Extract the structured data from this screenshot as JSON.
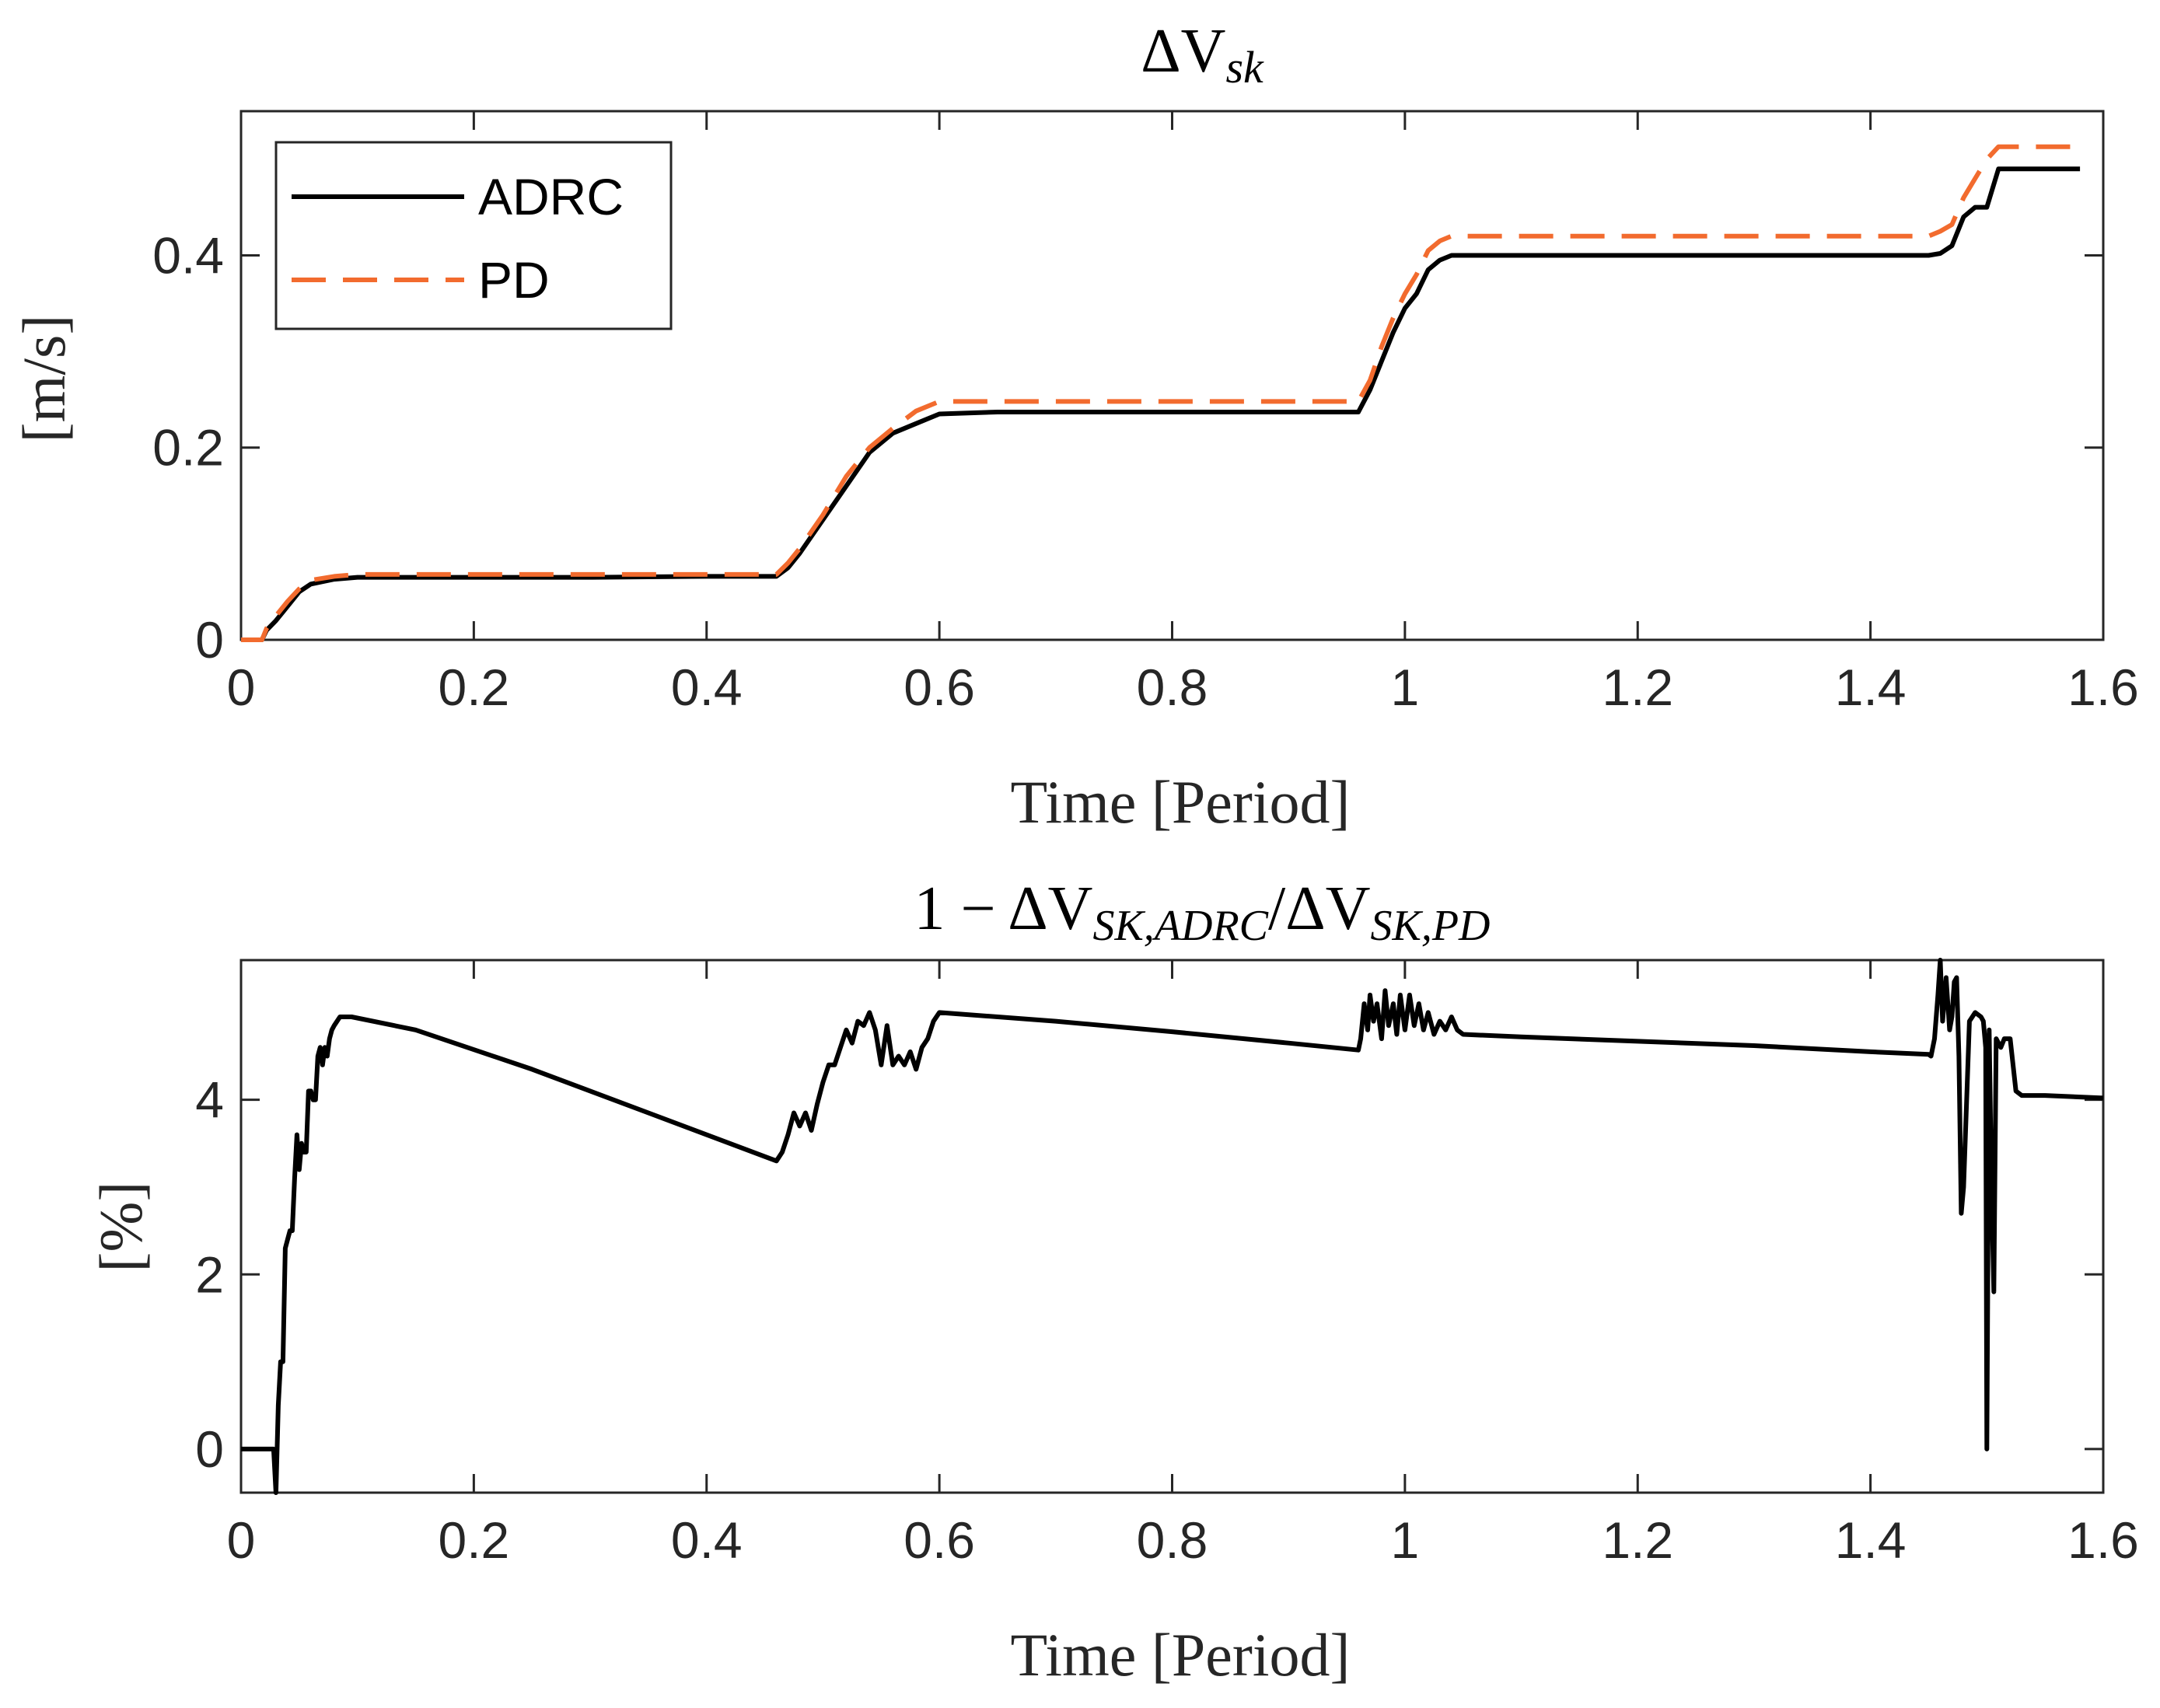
{
  "chart_data": [
    {
      "type": "line",
      "title": "ΔV_sk",
      "title_parts": {
        "main": "ΔV",
        "sub": "sk"
      },
      "xlabel": "Time [Period]",
      "ylabel": "[m/s]",
      "xlim": [
        0,
        1.6
      ],
      "ylim": [
        0,
        0.55
      ],
      "xticks": [
        0,
        0.2,
        0.4,
        0.6,
        0.8,
        1,
        1.2,
        1.4,
        1.6
      ],
      "xtick_labels": [
        "0",
        "0.2",
        "0.4",
        "0.6",
        "0.8",
        "1",
        "1.2",
        "1.4",
        "1.6"
      ],
      "yticks": [
        0,
        0.2,
        0.4
      ],
      "ytick_labels": [
        "0",
        "0.2",
        "0.4"
      ],
      "legend_position": "top-left",
      "series": [
        {
          "name": "ADRC",
          "color": "#000000",
          "style": "solid",
          "x": [
            0,
            0.018,
            0.022,
            0.03,
            0.04,
            0.05,
            0.06,
            0.08,
            0.1,
            0.2,
            0.3,
            0.4,
            0.46,
            0.47,
            0.48,
            0.5,
            0.52,
            0.54,
            0.56,
            0.58,
            0.6,
            0.65,
            0.8,
            0.96,
            0.97,
            0.98,
            0.99,
            1.0,
            1.01,
            1.02,
            1.03,
            1.04,
            1.05,
            1.1,
            1.3,
            1.45,
            1.46,
            1.47,
            1.48,
            1.49,
            1.5,
            1.51,
            1.52,
            1.58
          ],
          "y": [
            0,
            0,
            0.01,
            0.02,
            0.035,
            0.05,
            0.058,
            0.063,
            0.065,
            0.065,
            0.065,
            0.066,
            0.066,
            0.075,
            0.09,
            0.125,
            0.16,
            0.195,
            0.215,
            0.225,
            0.235,
            0.237,
            0.237,
            0.237,
            0.26,
            0.29,
            0.32,
            0.345,
            0.36,
            0.385,
            0.395,
            0.4,
            0.4,
            0.4,
            0.4,
            0.4,
            0.402,
            0.41,
            0.44,
            0.45,
            0.45,
            0.49,
            0.49,
            0.49
          ]
        },
        {
          "name": "PD",
          "color": "#F26B2E",
          "style": "dashed",
          "x": [
            0,
            0.018,
            0.022,
            0.03,
            0.04,
            0.05,
            0.06,
            0.08,
            0.1,
            0.2,
            0.3,
            0.4,
            0.46,
            0.47,
            0.48,
            0.5,
            0.52,
            0.54,
            0.56,
            0.58,
            0.6,
            0.65,
            0.8,
            0.96,
            0.97,
            0.98,
            0.99,
            1.0,
            1.01,
            1.02,
            1.03,
            1.04,
            1.05,
            1.1,
            1.3,
            1.45,
            1.46,
            1.47,
            1.48,
            1.49,
            1.5,
            1.51,
            1.52,
            1.58
          ],
          "y": [
            0,
            0,
            0.012,
            0.025,
            0.04,
            0.053,
            0.062,
            0.066,
            0.068,
            0.068,
            0.068,
            0.068,
            0.068,
            0.08,
            0.095,
            0.13,
            0.17,
            0.2,
            0.22,
            0.238,
            0.248,
            0.248,
            0.248,
            0.248,
            0.27,
            0.305,
            0.335,
            0.36,
            0.38,
            0.405,
            0.415,
            0.42,
            0.42,
            0.42,
            0.42,
            0.42,
            0.425,
            0.432,
            0.46,
            0.48,
            0.5,
            0.513,
            0.513,
            0.513
          ]
        }
      ]
    },
    {
      "type": "line",
      "title": "1 − ΔV_SK,ADRC / ΔV_SK,PD",
      "title_parts": {
        "prefix": "1 − ΔV",
        "sub1": "SK,ADRC",
        "mid": "/ΔV",
        "sub2": "SK,PD"
      },
      "xlabel": "Time [Period]",
      "ylabel": "[%]",
      "xlim": [
        0,
        1.6
      ],
      "ylim": [
        -0.5,
        5.6
      ],
      "xticks": [
        0,
        0.2,
        0.4,
        0.6,
        0.8,
        1,
        1.2,
        1.4,
        1.6
      ],
      "xtick_labels": [
        "0",
        "0.2",
        "0.4",
        "0.6",
        "0.8",
        "1",
        "1.2",
        "1.4",
        "1.6"
      ],
      "yticks": [
        0,
        2,
        4
      ],
      "ytick_labels": [
        "0",
        "2",
        "4"
      ],
      "series": [
        {
          "name": "1 − ΔV_SK,ADRC/ΔV_SK,PD",
          "color": "#000000",
          "style": "solid",
          "x": [
            0,
            0.028,
            0.03,
            0.032,
            0.034,
            0.036,
            0.038,
            0.04,
            0.042,
            0.044,
            0.046,
            0.048,
            0.05,
            0.052,
            0.054,
            0.056,
            0.058,
            0.06,
            0.062,
            0.064,
            0.066,
            0.068,
            0.07,
            0.072,
            0.074,
            0.076,
            0.078,
            0.08,
            0.085,
            0.09,
            0.095,
            0.15,
            0.25,
            0.35,
            0.45,
            0.46,
            0.465,
            0.47,
            0.475,
            0.48,
            0.485,
            0.49,
            0.495,
            0.5,
            0.505,
            0.51,
            0.515,
            0.52,
            0.525,
            0.53,
            0.535,
            0.54,
            0.545,
            0.55,
            0.555,
            0.56,
            0.565,
            0.57,
            0.575,
            0.58,
            0.585,
            0.59,
            0.595,
            0.6,
            0.7,
            0.8,
            0.9,
            0.96,
            0.962,
            0.965,
            0.968,
            0.97,
            0.973,
            0.976,
            0.98,
            0.983,
            0.986,
            0.99,
            0.993,
            0.996,
            1.0,
            1.004,
            1.008,
            1.012,
            1.016,
            1.02,
            1.025,
            1.03,
            1.035,
            1.04,
            1.045,
            1.05,
            1.1,
            1.2,
            1.3,
            1.4,
            1.45,
            1.452,
            1.455,
            1.458,
            1.46,
            1.462,
            1.465,
            1.468,
            1.47,
            1.472,
            1.474,
            1.476,
            1.478,
            1.48,
            1.485,
            1.49,
            1.495,
            1.497,
            1.499,
            1.5,
            1.502,
            1.504,
            1.506,
            1.508,
            1.51,
            1.512,
            1.515,
            1.52,
            1.525,
            1.53,
            1.55,
            1.6
          ],
          "y": [
            0,
            0,
            -0.5,
            0.5,
            1.0,
            1.0,
            2.3,
            2.4,
            2.5,
            2.5,
            3.1,
            3.6,
            3.2,
            3.5,
            3.4,
            3.4,
            4.1,
            4.1,
            4.0,
            4.0,
            4.5,
            4.6,
            4.4,
            4.6,
            4.5,
            4.7,
            4.8,
            4.85,
            4.95,
            4.95,
            4.95,
            4.8,
            4.35,
            3.85,
            3.35,
            3.3,
            3.4,
            3.6,
            3.85,
            3.7,
            3.85,
            3.65,
            3.95,
            4.2,
            4.4,
            4.4,
            4.6,
            4.8,
            4.65,
            4.9,
            4.85,
            5.0,
            4.8,
            4.4,
            4.85,
            4.4,
            4.5,
            4.4,
            4.55,
            4.35,
            4.6,
            4.7,
            4.9,
            5.0,
            4.9,
            4.78,
            4.65,
            4.57,
            4.7,
            5.1,
            4.8,
            5.2,
            4.9,
            5.1,
            4.7,
            5.25,
            4.85,
            5.1,
            4.75,
            5.2,
            4.8,
            5.2,
            4.85,
            5.1,
            4.8,
            5.0,
            4.75,
            4.9,
            4.8,
            4.95,
            4.8,
            4.75,
            4.72,
            4.67,
            4.62,
            4.55,
            4.52,
            4.5,
            4.7,
            5.2,
            5.6,
            4.9,
            5.4,
            4.8,
            4.95,
            5.35,
            5.4,
            4.5,
            2.7,
            3.0,
            4.9,
            5.0,
            4.95,
            4.9,
            4.6,
            0.0,
            4.8,
            3.0,
            1.8,
            4.7,
            4.65,
            4.6,
            4.7,
            4.7,
            4.1,
            4.05,
            4.05,
            4.02
          ]
        }
      ]
    }
  ]
}
